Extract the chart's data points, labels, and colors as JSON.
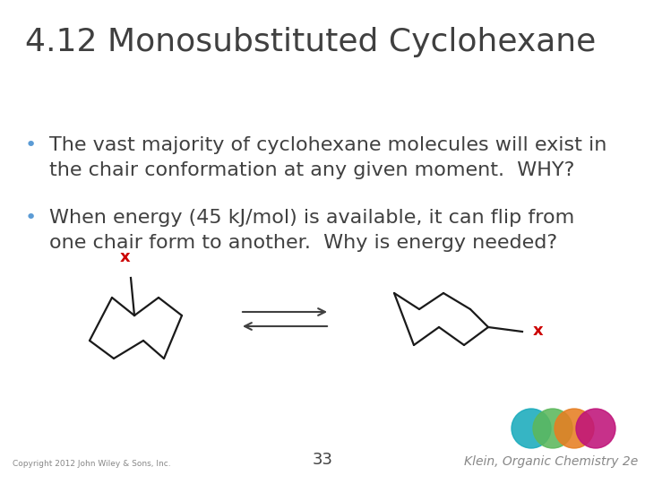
{
  "title": "4.12 Monosubstituted Cyclohexane",
  "title_fontsize": 26,
  "title_color": "#404040",
  "bullet1_line1": "The vast majority of cyclohexane molecules will exist in",
  "bullet1_line2": "the chair conformation at any given moment.  WHY?",
  "bullet2_line1": "When energy (45 kJ/mol) is available, it can flip from",
  "bullet2_line2": "one chair form to another.  Why is energy needed?",
  "bullet_fontsize": 16,
  "bullet_color": "#404040",
  "bullet_dot_color": "#5b9bd5",
  "copyright_text": "Copyright 2012 John Wiley & Sons, Inc.",
  "page_number": "33",
  "footer_text": "Klein, Organic Chemistry 2e",
  "x_label_color": "#cc0000",
  "circle_colors": [
    "#1aabbc",
    "#5cb85c",
    "#e67e22",
    "#c0147a"
  ],
  "background_color": "#ffffff"
}
